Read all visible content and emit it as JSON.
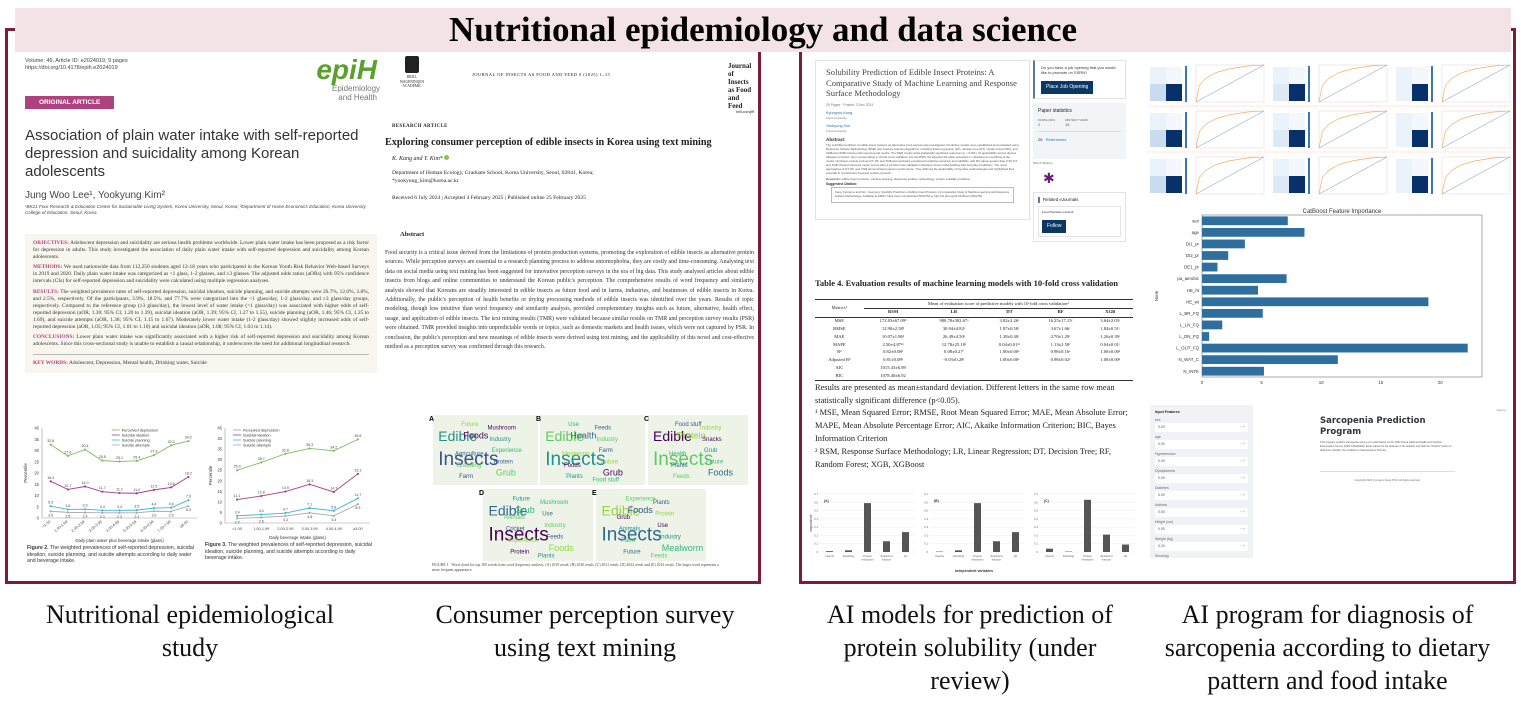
{
  "title": "Nutritional epidemiology and data science",
  "colors": {
    "frame": "#7b1c3a",
    "band": "#f3e3e7",
    "epih_green": "#5aa02c",
    "badge": "#b0417f",
    "bar_blue": "#2f6f9f",
    "ssrn_button": "#0b3763",
    "plumx": "#6a1b7a"
  },
  "captions": [
    "Nutritional epidemiological study",
    "Consumer perception survey using text mining",
    "AI models for prediction of protein solubility (under review)",
    "AI program for diagnosis of sarcopenia according to dietary pattern and food intake"
  ],
  "paper1": {
    "volume": "Volume: 46, Article ID: e2024019, 9 pages",
    "doi": "https://doi.org/10.4178/epih.e2024019",
    "logo": "epiH",
    "logo_sub": "Epidemiology and Health",
    "badge": "ORIGINAL ARTICLE",
    "title": "Association of plain water intake with self-reported depression and suicidality among Korean adolescents",
    "authors": "Jung Woo Lee¹, Yookyung Kim²",
    "affiliation": "¹BK21 Four Research & Education Center for Sustainable Living System, Korea University, Seoul, Korea; ²Department of Home Economics Education, Korea University College of Education, Seoul, Korea",
    "abstract": [
      {
        "label": "OBJECTIVES:",
        "text": "Adolescent depression and suicidality are serious health problems worldwide. Lower plain water intake has been proposed as a risk factor for depression in adults. This study investigated the association of daily plain water intake with self-reported depression and suicidality among Korean adolescents."
      },
      {
        "label": "METHODS:",
        "text": "We used nationwide data from 112,250 students aged 12-18 years who participated in the Korean Youth Risk Behavior Web-based Surveys in 2019 and 2020. Daily plain water intake was categorized as <1 glass, 1-2 glasses, and ≥3 glasses. The adjusted odds ratios (aORs) with 95% confidence intervals (CIs) for self-reported depression and suicidality were calculated using multiple regression analyses."
      },
      {
        "label": "RESULTS:",
        "text": "The weighted prevalence rates of self-reported depression, suicidal ideation, suicide planning, and suicide attempts were 26.7%, 12.0%, 3.8%, and 2.5%, respectively. Of the participants, 3.9%, 18.5%, and 77.7% were categorized into the <1 glass/day, 1-2 glass/day, and ≥3 glass/day groups, respectively. Compared to the reference group (≥3 glass/day), the lowest level of water intake (<1 glass/day) was associated with higher odds of self-reported depression (aOR, 1.30; 95% CI, 1.20 to 1.39), suicidal ideation (aOR, 1.39; 95% CI, 1.27 to 1.55), suicide planning (aOR, 1.46; 95% CI, 1.25 to 1.69), and suicide attempts (aOR, 1.38; 95% CI, 1.15 to 1.67). Moderately lower water intake (1-2 glass/day) showed slightly increased odds of self-reported depression (aOR, 1.05; 95% CI, 1.01 to 1.10) and suicidal ideation (aOR, 1.08; 95% CI, 1.03 to 1.14)."
      },
      {
        "label": "CONCLUSIONS:",
        "text": "Lower plain water intake was significantly associated with a higher risk of self-reported depression and suicidality among Korean adolescents. Since this cross-sectional study is unable to establish a causal relationship, it underscores the need for additional longitudinal research."
      }
    ],
    "keywords_label": "KEY WORDS:",
    "keywords": "Adolescent, Depression, Mental health, Drinking water, Suicide",
    "fig2_caption_label": "Figure 2.",
    "fig2_caption": "The weighted prevalences of self-reported depression, suicidal ideation, suicide planning, and suicide attempts according to daily water and beverage intake.",
    "fig3_caption_label": "Figure 3.",
    "fig3_caption": "The weighted prevalences of self-reported depression, suicidal ideation, suicide planning, and suicide attempts according to daily beverage intake."
  },
  "paper2": {
    "publisher": "BRILL WAGENINGEN ACADEMIC",
    "journal_header": "JOURNAL OF INSECTS AS FOOD AND FEED 0 (2025) 1–15",
    "journal_logo": "Journal of Insects as Food and Feed",
    "journal_url": "brill.com/jiff",
    "type": "RESEARCH ARTICLE",
    "title": "Exploring consumer perception of edible insects in Korea using text mining",
    "authors": "K. Kang and Y. Kim*",
    "affiliation": "Department of Human Ecology, Graduate School, Korea University, Seoul, 02841, Korea;",
    "email": "*yookyung_kim@korea.ac.kr",
    "dates": "Received 6 July 2024 | Accepted 4 February 2025 | Published online 25 February 2025",
    "abstract_heading": "Abstract",
    "abstract": "Food security is a critical issue derived from the limitations of protein production systems, promoting the exploration of edible insects as alternative protein sources. While perception surveys are essential to a research planning process to address entomophobia, they are costly and time-consuming. Analysing text data on social media using text mining has been suggested for innovative perception surveys in the era of big data. This study analysed articles about edible insects from blogs and online communities to understand the Korean public's perception. The comprehensive results of word frequency and similarity analysis showed that Koreans are steadily interested in edible insects as future food and in farms, industries, and businesses of edible insects in Korea. Additionally, the public's perception of health benefits or drying processing methods of edible insects was identified over the years. Results of topic modeling, though less intuitive than word frequency and similarity analysis, provided complementary insights such as future, alternative, health effect, usage, and application of edible insects. The text mining results (TMR) were validated because similar results on TMR and perception survey results (PSR) were obtained. TMR provided insights into unpredictable words or topics, such as domestic markets and health issues, which were not captured by PSR. In conclusion, the public's perception and new meanings of edible insects were derived using text mining, and the applicability of this novel and cost-effective method as a perception survey was confirmed through this research.",
    "wordclouds": [
      {
        "label": "A",
        "words": [
          "Insects",
          "Edible",
          "Grub",
          "Foods",
          "Protein",
          "Future",
          "Experience",
          "Farm",
          "Industry",
          "Breeding",
          "Mushroom",
          "Agriculture"
        ]
      },
      {
        "label": "B",
        "words": [
          "Insects",
          "Edible",
          "Grub",
          "Health",
          "Future",
          "Use",
          "Farm",
          "Plants",
          "Industry",
          "Foods",
          "Feeds",
          "Mealworm",
          "Food stuff"
        ]
      },
      {
        "label": "C",
        "words": [
          "Insects",
          "Edible",
          "Foods",
          "Protein",
          "Future",
          "Food stuff",
          "Grub",
          "Feeds",
          "Snacks",
          "Plants",
          "Industry",
          "Health"
        ]
      },
      {
        "label": "D",
        "words": [
          "Insects",
          "Edible",
          "Foods",
          "Grub",
          "Feeds",
          "Future",
          "Industry",
          "Protein",
          "Use",
          "Experience",
          "Mushroom",
          "Cricket",
          "Plants",
          "Animals"
        ]
      },
      {
        "label": "E",
        "words": [
          "Insects",
          "Edible",
          "Mealworm",
          "Foods",
          "Industry",
          "Experience",
          "Use",
          "Future",
          "Protein",
          "Farm",
          "Plants",
          "Animals",
          "Feeds",
          "Grub"
        ]
      }
    ],
    "figure_caption_label": "FIGURE 1",
    "figure_caption": "Word cloud for top 100 words from word frequency analysis. (A) 2019 result, (B) 2020 result, (C) 2021 result, (D) 2022 result and (E) 2023 result. The larger word represents a more frequent appearance."
  },
  "ssrn": {
    "title": "Solubility Prediction of Edible Insect Proteins: A Comparative Study of Machine Learning and Response Surface Methodology",
    "meta": "29 Pages · Posted: 3 Dec 2024",
    "authors": [
      {
        "name": "Kyungmo Kang",
        "affil": "Korea University"
      },
      {
        "name": "Yookyung Kim",
        "affil": "Korea University"
      }
    ],
    "abstract_heading": "Abstract",
    "abstract": "The solubility prediction of edible insect proteins as alternative food sources was investigated. Prediction models were established and evaluated using Response Surface Methodology (RSM) and machine learning algorithms, including linear regression (LR), decision tree (DT), random forest (RF), and XGBoost (XGB) training with experimental results. The RSM model yields statistically significant outcomes (p < 0.001), its applicability across diverse datasets is limited. Upon incorporating a 10-fold cross-validation into the RSM, the adjusted R2 value exceeded 1, indicating an overfitting of the model. Nonlinear models such as DT, RF, and XGB demonstrated exceptional predictive accuracy and reliability, with R2 values greater than 0.99. DT and XGB showed improved metric scores after a 10-fold cross-validation indicating robust model building with accurate predictions. The novel approaches of DT, RF, and XGB demonstrated superior performance. They affirmed the applicability of big data methodologies and highlighted their potential to revolutionize food and protein research.",
    "keywords_label": "Keywords:",
    "keywords": "edible insect proteins, machine learning, Response surface methodology, protein solubility prediction",
    "citation_label": "Suggested Citation:",
    "citation": "Kang, Kyungmo and Kim, Yookyung, Solubility Prediction of Edible Insect Proteins: A Comparative Study of Machine Learning and Response Surface Methodology. Available at SSRN: https://ssrn.com/abstract=5042762 or http://dx.doi.org/10.2139/ssrn.5042762",
    "job_prompt": "Do you have a job opening that you would like to promote on SSRN?",
    "job_button": "Place Job Opening",
    "stats_heading": "Paper statistics",
    "downloads_label": "DOWNLOADS",
    "downloads": "2",
    "views_label": "ABSTRACT VIEWS",
    "views": "18",
    "references_count": "26",
    "references_label": "References",
    "plumx": "PlumX Metrics",
    "related_heading": "Related eJournals",
    "ejournal": "Food Chemistry eJournal",
    "follow": "Follow"
  },
  "table4": {
    "caption": "Table 4. Evaluation results of machine learning models with 10-fold cross validation",
    "metric_header": "Metrics¹",
    "group_header": "Mean of evaluation score of predictive models with 10-fold cross validation²",
    "columns": [
      "RSM",
      "LR",
      "DT",
      "RF",
      "XGB"
    ],
    "rows": [
      {
        "metric": "MSE",
        "values": [
          "172.83±67.09ᵇ",
          "980.78±302.67ᵃ",
          "3.82±2.26ᶜ",
          "16.25±17.15ᶜ",
          "3.64±2.03ᶜ"
        ]
      },
      {
        "metric": "RMSE",
        "values": [
          "12.90±2.58ᵇ",
          "30.94±4.82ᵃ",
          "1.87±0.50ᶜ",
          "3.67±1.66ᶜ",
          "1.84±0.51ᶜ"
        ]
      },
      {
        "metric": "MAE",
        "values": [
          "10.07±1.86ᵇ",
          "26.49±4.50ᵃ",
          "1.28±0.40ᶜ",
          "2.70±1.29ᶜ",
          "1.26±0.39ᶜ"
        ]
      },
      {
        "metric": "MAPE",
        "values": [
          "2.50±4.87ᵃᵇ",
          "12.78±25.18ᵃ",
          "0.04±0.01ᵃᵇ",
          "1.13±2.58ᶜ",
          "0.04±0.01ᶜ"
        ]
      },
      {
        "metric": "R²",
        "values": [
          "0.82±0.08ᵇ",
          "0.08±0.27ᶜ",
          "1.00±0.00ᵃ",
          "0.98±0.16ᵃ",
          "1.00±0.00ᵃ"
        ]
      },
      {
        "metric": "Adjusted R²",
        "values": [
          "0.81±0.08ᵇ",
          "-0.03±0.28ᶜ",
          "1.00±0.00ᵃ",
          "0.98±0.02ᵃ",
          "1.00±0.00ᵃ"
        ]
      },
      {
        "metric": "AIC",
        "values": [
          "1015.43±6.89",
          "",
          "",
          "",
          ""
        ]
      },
      {
        "metric": "BIC",
        "values": [
          "1078.40±6.92",
          "",
          "",
          "",
          ""
        ]
      }
    ],
    "note": "Results are presented as mean±standard deviation. Different letters in the same row mean statistically significant difference (p<0.05).",
    "footnote1": "¹ MSE, Mean Squared Error; RMSE, Root Mean Squared Error; MAE, Mean Absolute Error; MAPE, Mean Absolute Percentage Error; AIC, Akaike Information Criterion; BIC, Bayes Information Criterion",
    "footnote2": "² RSM, Response Surface Methodology; LR, Linear Regression; DT, Decision Tree; RF, Random Forest; XGB, XGBoost"
  },
  "app": {
    "sidebar_heading": "Input Features",
    "fields": [
      {
        "label": "sex",
        "value": "0.00"
      },
      {
        "label": "age",
        "value": "0.00"
      },
      {
        "label": "Hypertension",
        "value": "0.00"
      },
      {
        "label": "Dyslipidemia",
        "value": "0.00"
      },
      {
        "label": "Diabetes",
        "value": "0.00"
      },
      {
        "label": "Asthma",
        "value": "0.00"
      },
      {
        "label": "Height (cm)",
        "value": "0.00"
      },
      {
        "label": "Weight (kg)",
        "value": "0.00"
      },
      {
        "label": "Smoking",
        "value": "0.00"
      }
    ],
    "title": "Sarcopenia Prediction Program",
    "description": "This program predicts sarcopenia using a AI model based on the 2022 Korea National Health and Nutrition Examination Survey (2022 KNHANES). Enter values for the features in the sidebar and click the \"Predict\" button to determine whether the condition is Sarcopenia or Normal.",
    "copyright": "Copyright 2024. Kyungmo Kang Ph.D. All rights reserved.",
    "menu": "Deploy"
  },
  "chart_data": [
    {
      "id": "fig2",
      "type": "line",
      "xlabel": "Daily plain water plus beverage intake (glass)",
      "ylabel": "Percentile",
      "ylim": [
        0,
        40
      ],
      "yticks": [
        0,
        5,
        10,
        15,
        20,
        25,
        30,
        35,
        40
      ],
      "legend": "top",
      "categories": [
        "<1.00",
        "1.00-1.99",
        "2.00-2.99",
        "3.00-3.99",
        "4.00-4.99",
        "5.00-5.99",
        "6.00-6.99",
        "7.00-7.99",
        "≥8.00"
      ],
      "series": [
        {
          "name": "Perceived depression",
          "color": "#7cbf5a",
          "values": [
            32.6,
            27.6,
            30.4,
            25.5,
            25.1,
            25.4,
            27.9,
            32.3,
            34.2
          ]
        },
        {
          "name": "Suicidal ideation",
          "color": "#a23d8c",
          "values": [
            16.3,
            12.7,
            14.0,
            11.7,
            11.1,
            11.0,
            12.5,
            13.6,
            18.2
          ]
        },
        {
          "name": "Suicide planning",
          "color": "#3fb6d2",
          "values": [
            5.3,
            3.8,
            3.9,
            3.4,
            3.4,
            3.5,
            4.4,
            4.6,
            7.9
          ]
        },
        {
          "name": "Suicide attempts",
          "color": "#aaaaaa",
          "values": [
            3.0,
            2.5,
            2.4,
            2.3,
            2.3,
            2.3,
            3.0,
            2.9,
            5.3
          ]
        }
      ]
    },
    {
      "id": "fig3",
      "type": "line",
      "xlabel": "Daily beverage intake (glass)",
      "ylabel": "Percentile",
      "ylim": [
        0,
        45
      ],
      "yticks": [
        0,
        5,
        10,
        15,
        20,
        25,
        30,
        35,
        40,
        45
      ],
      "legend": "top-left",
      "categories": [
        "<1.00",
        "1.00-1.99",
        "2.00-2.99",
        "3.00-3.99",
        "4.00-4.99",
        "≥5.00"
      ],
      "series": [
        {
          "name": "Perceived depression",
          "color": "#7cbf5a",
          "values": [
            25.0,
            28.7,
            32.8,
            35.3,
            34.2,
            39.6
          ]
        },
        {
          "name": "Suicidal ideation",
          "color": "#a23d8c",
          "values": [
            11.1,
            12.8,
            14.9,
            18.3,
            14.7,
            23.3
          ]
        },
        {
          "name": "Suicide planning",
          "color": "#3fb6d2",
          "values": [
            3.4,
            4.0,
            4.7,
            7.1,
            5.8,
            11.7
          ]
        },
        {
          "name": "Suicide attempts",
          "color": "#aaaaaa",
          "values": [
            2.2,
            2.6,
            3.3,
            4.8,
            3.4,
            8.9
          ]
        }
      ]
    },
    {
      "id": "catboost",
      "type": "bar",
      "orientation": "horizontal",
      "title": "CatBoost Feature Importance",
      "ylabel": "None",
      "xlim": [
        0,
        23.5
      ],
      "xticks": [
        0,
        5,
        10,
        15,
        20
      ],
      "categories": [
        "sex",
        "age",
        "DI1_pr",
        "DI2_pr",
        "DE1_pr",
        "pa_aerobic",
        "HE_ht",
        "HE_wt",
        "L_BR_FQ",
        "L_LN_FQ",
        "L_DN_FQ",
        "L_OUT_FQ",
        "N_WAT_C",
        "N_INTK"
      ],
      "values": [
        7.2,
        8.6,
        3.6,
        2.2,
        1.3,
        7.1,
        4.7,
        19.0,
        5.1,
        1.7,
        0.6,
        22.3,
        11.4,
        5.2
      ]
    },
    {
      "id": "importance",
      "type": "bar",
      "ylabel": "Importance",
      "xlabel": "Independent variables",
      "ylim": [
        0,
        0.7
      ],
      "yticks": [
        0,
        0.1,
        0.2,
        0.3,
        0.4,
        0.5,
        0.6,
        0.7
      ],
      "categories": [
        "Insects",
        "Defatting",
        "Protein extraction",
        "Extracted fraction",
        "pH"
      ],
      "panels": [
        {
          "label": "(A)",
          "values": [
            0.01,
            0.02,
            0.59,
            0.13,
            0.24
          ]
        },
        {
          "label": "(B)",
          "values": [
            0.005,
            0.02,
            0.59,
            0.13,
            0.24
          ]
        },
        {
          "label": "(C)",
          "values": [
            0.04,
            0.005,
            0.63,
            0.21,
            0.09
          ]
        }
      ]
    }
  ]
}
